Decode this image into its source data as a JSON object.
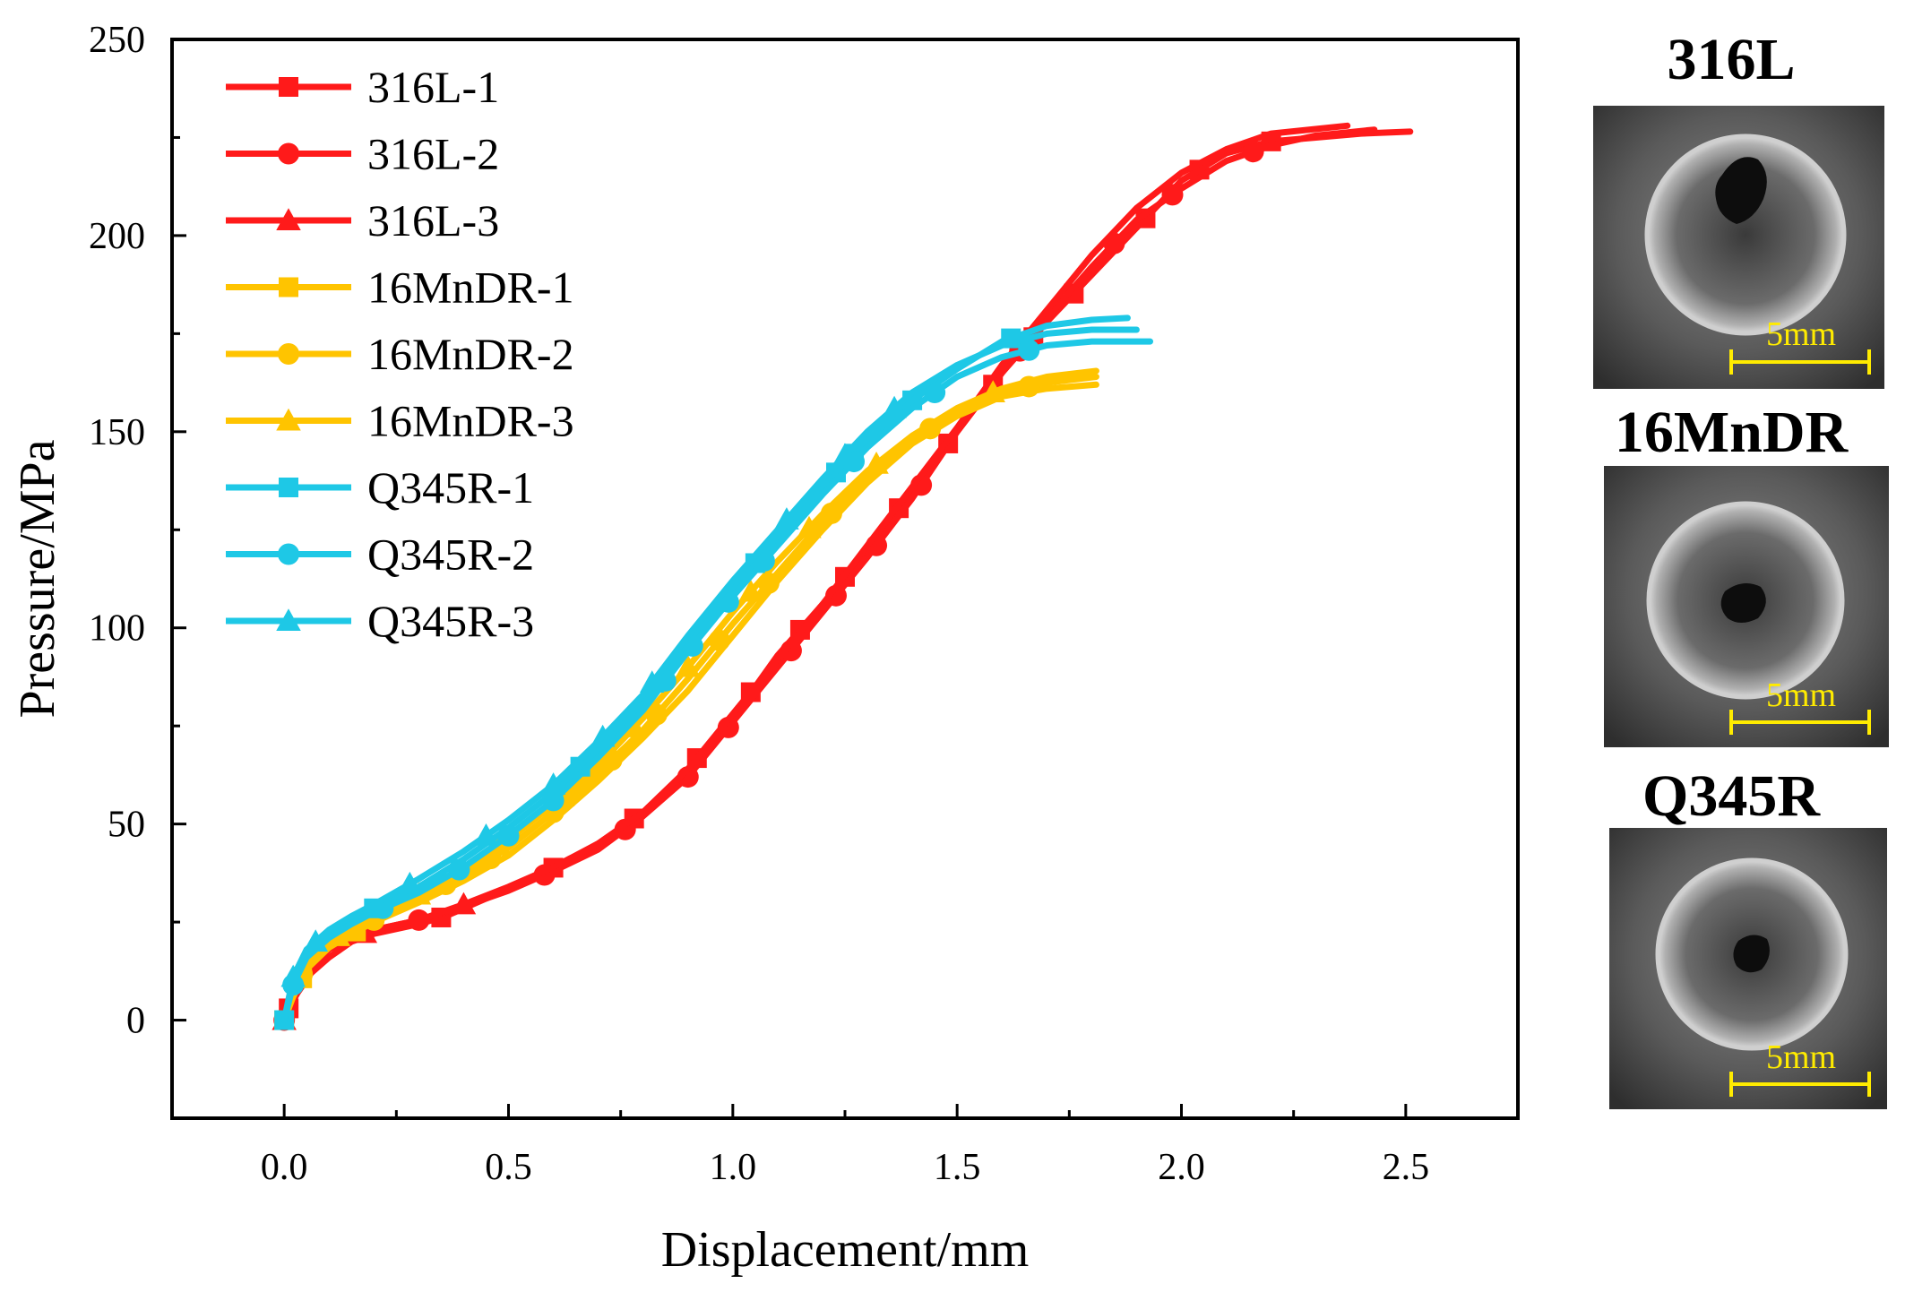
{
  "chart_data": {
    "type": "line",
    "xlabel": "Displacement/mm",
    "ylabel": "Pressure/MPa",
    "xlim": [
      -0.25,
      2.75
    ],
    "ylim": [
      -25,
      250
    ],
    "xticks": [
      0.0,
      0.5,
      1.0,
      1.5,
      2.0,
      2.5
    ],
    "xtick_labels": [
      "0.0",
      "0.5",
      "1.0",
      "1.5",
      "2.0",
      "2.5"
    ],
    "yticks": [
      0,
      50,
      100,
      150,
      200,
      250
    ],
    "ytick_labels": [
      "0",
      "50",
      "100",
      "150",
      "200",
      "250"
    ],
    "legend_position": "top-left",
    "series": [
      {
        "name": "316L-1",
        "color": "#ff1a1a",
        "marker": "square",
        "x": [
          0,
          0.01,
          0.03,
          0.06,
          0.1,
          0.15,
          0.2,
          0.3,
          0.36,
          0.45,
          0.55,
          0.62,
          0.7,
          0.8,
          0.9,
          1.0,
          1.05,
          1.1,
          1.2,
          1.3,
          1.4,
          1.5,
          1.6,
          1.7,
          1.8,
          1.9,
          2.0,
          2.1,
          2.2,
          2.3,
          2.4,
          2.51
        ],
        "y": [
          0,
          3,
          7,
          12,
          16,
          20,
          22,
          24.5,
          26.5,
          31,
          36,
          40,
          45,
          53,
          64,
          78,
          85,
          93,
          106,
          120,
          135,
          150,
          165,
          178,
          190,
          202,
          214,
          221,
          224,
          225,
          226,
          226.5
        ],
        "marker_x": [
          0.01,
          0.35,
          0.6,
          0.78,
          0.92,
          1.04,
          1.15,
          1.25,
          1.37,
          1.48,
          1.58,
          1.67,
          1.76,
          1.92,
          2.04,
          2.2
        ]
      },
      {
        "name": "316L-2",
        "color": "#ff1a1a",
        "marker": "circle",
        "x": [
          0,
          0.01,
          0.03,
          0.06,
          0.1,
          0.15,
          0.2,
          0.3,
          0.4,
          0.5,
          0.6,
          0.7,
          0.8,
          0.9,
          1.0,
          1.1,
          1.2,
          1.3,
          1.4,
          1.5,
          1.6,
          1.7,
          1.8,
          1.9,
          2.0,
          2.1,
          2.2,
          2.3,
          2.43
        ],
        "y": [
          0,
          4,
          9,
          14,
          18,
          21,
          23,
          25.5,
          29,
          33,
          38,
          43.5,
          52,
          62,
          76,
          90,
          104,
          118,
          133,
          150,
          165,
          179,
          192,
          204,
          212,
          219,
          223,
          225.5,
          227
        ],
        "marker_x": [
          0,
          0.3,
          0.58,
          0.76,
          0.9,
          0.99,
          1.13,
          1.23,
          1.32,
          1.42,
          1.64,
          1.85,
          1.98,
          2.16
        ]
      },
      {
        "name": "316L-3",
        "color": "#ff1a1a",
        "marker": "triangle",
        "x": [
          0,
          0.01,
          0.03,
          0.06,
          0.1,
          0.15,
          0.2,
          0.3,
          0.4,
          0.5,
          0.6,
          0.7,
          0.8,
          0.9,
          1.0,
          1.1,
          1.2,
          1.3,
          1.4,
          1.5,
          1.6,
          1.7,
          1.8,
          1.9,
          2.0,
          2.1,
          2.2,
          2.37
        ],
        "y": [
          0,
          4,
          10,
          14.5,
          18.5,
          21,
          23,
          25.5,
          29.5,
          34,
          39,
          45,
          53,
          64,
          78,
          92,
          106,
          121,
          136,
          151,
          167,
          181,
          195,
          207,
          216,
          222,
          226,
          228
        ],
        "marker_x": [
          0,
          0.18,
          0.4
        ]
      },
      {
        "name": "16MnDR-1",
        "color": "#ffc400",
        "marker": "square",
        "x": [
          0,
          0.02,
          0.05,
          0.1,
          0.15,
          0.2,
          0.3,
          0.4,
          0.5,
          0.6,
          0.7,
          0.8,
          0.9,
          1.0,
          1.1,
          1.2,
          1.3,
          1.4,
          1.5,
          1.6,
          1.7,
          1.81
        ],
        "y": [
          0,
          6,
          13,
          18.5,
          22,
          25,
          30,
          35.5,
          42,
          51,
          61,
          72,
          84,
          98,
          112,
          125,
          137,
          147,
          154,
          159,
          161,
          162
        ],
        "marker_x": [
          0,
          0.04,
          0.16
        ]
      },
      {
        "name": "16MnDR-2",
        "color": "#ffc400",
        "marker": "circle",
        "x": [
          0,
          0.02,
          0.05,
          0.1,
          0.15,
          0.2,
          0.3,
          0.4,
          0.5,
          0.6,
          0.7,
          0.8,
          0.9,
          1.0,
          1.1,
          1.2,
          1.3,
          1.4,
          1.5,
          1.6,
          1.7,
          1.81
        ],
        "y": [
          0,
          7,
          14,
          19,
          22.5,
          25.5,
          31,
          37,
          44,
          53,
          63,
          74,
          87,
          101,
          114,
          127,
          138,
          148,
          155,
          160,
          162.5,
          164
        ],
        "marker_x": [
          0.04,
          0.2,
          0.36,
          0.46,
          0.6,
          0.73,
          0.83,
          0.97,
          1.08,
          1.22,
          1.44,
          1.66
        ]
      },
      {
        "name": "16MnDR-3",
        "color": "#ffc400",
        "marker": "triangle",
        "x": [
          0,
          0.02,
          0.05,
          0.1,
          0.15,
          0.2,
          0.3,
          0.4,
          0.5,
          0.6,
          0.7,
          0.8,
          0.9,
          1.0,
          1.1,
          1.2,
          1.3,
          1.4,
          1.5,
          1.6,
          1.7,
          1.81
        ],
        "y": [
          0,
          8,
          15,
          20,
          23.5,
          26.5,
          32,
          38.5,
          46,
          55,
          65,
          77,
          90,
          104,
          117,
          129,
          140,
          149,
          156,
          161,
          164,
          165.5
        ],
        "marker_x": [
          0.12,
          0.3,
          0.48,
          0.62,
          0.78,
          0.9,
          1.04,
          1.17,
          1.32,
          1.58
        ]
      },
      {
        "name": "Q345R-1",
        "color": "#1ec8e6",
        "marker": "square",
        "x": [
          0,
          0.02,
          0.05,
          0.1,
          0.15,
          0.2,
          0.3,
          0.4,
          0.5,
          0.6,
          0.7,
          0.8,
          0.9,
          1.0,
          1.1,
          1.2,
          1.3,
          1.4,
          1.5,
          1.6,
          1.7,
          1.8,
          1.88
        ],
        "y": [
          0,
          10,
          17,
          22,
          25.5,
          28.5,
          34,
          41,
          49,
          58,
          69,
          81,
          96,
          110,
          123,
          136,
          148,
          158,
          166,
          173,
          177,
          178.5,
          179
        ],
        "marker_x": [
          0,
          0.2,
          0.66,
          1.05,
          1.23,
          1.27,
          1.4,
          1.62
        ]
      },
      {
        "name": "Q345R-2",
        "color": "#1ec8e6",
        "marker": "circle",
        "x": [
          0,
          0.02,
          0.05,
          0.1,
          0.15,
          0.2,
          0.3,
          0.4,
          0.5,
          0.6,
          0.7,
          0.8,
          0.9,
          1.0,
          1.1,
          1.2,
          1.3,
          1.4,
          1.5,
          1.6,
          1.7,
          1.8,
          1.93
        ],
        "y": [
          0,
          9,
          16,
          21,
          24.5,
          27.5,
          32.5,
          39,
          47,
          56,
          67,
          79,
          94,
          108,
          121,
          134,
          146,
          156,
          164,
          169,
          172,
          173,
          173
        ],
        "marker_x": [
          0.02,
          0.22,
          0.39,
          0.5,
          0.6,
          0.85,
          0.91,
          0.99,
          1.07,
          1.27,
          1.45,
          1.66
        ]
      },
      {
        "name": "Q345R-3",
        "color": "#1ec8e6",
        "marker": "triangle",
        "x": [
          0,
          0.02,
          0.05,
          0.1,
          0.15,
          0.2,
          0.3,
          0.4,
          0.5,
          0.6,
          0.7,
          0.8,
          0.9,
          1.0,
          1.1,
          1.2,
          1.3,
          1.4,
          1.5,
          1.6,
          1.7,
          1.8,
          1.9
        ],
        "y": [
          0,
          11,
          18,
          23,
          26.5,
          29.5,
          36,
          43,
          51,
          60,
          71,
          83,
          98,
          112,
          125,
          138,
          150,
          160,
          167,
          172,
          175,
          176,
          176
        ],
        "marker_x": [
          0.02,
          0.07,
          0.28,
          0.45,
          0.6,
          0.71,
          0.82,
          1.12,
          1.25,
          1.36
        ]
      }
    ]
  },
  "samples": [
    {
      "title": "316L",
      "scale_label": "5mm",
      "hole": "large"
    },
    {
      "title": "16MnDR",
      "scale_label": "5mm",
      "hole": "medium"
    },
    {
      "title": "Q345R",
      "scale_label": "5mm",
      "hole": "small"
    }
  ]
}
